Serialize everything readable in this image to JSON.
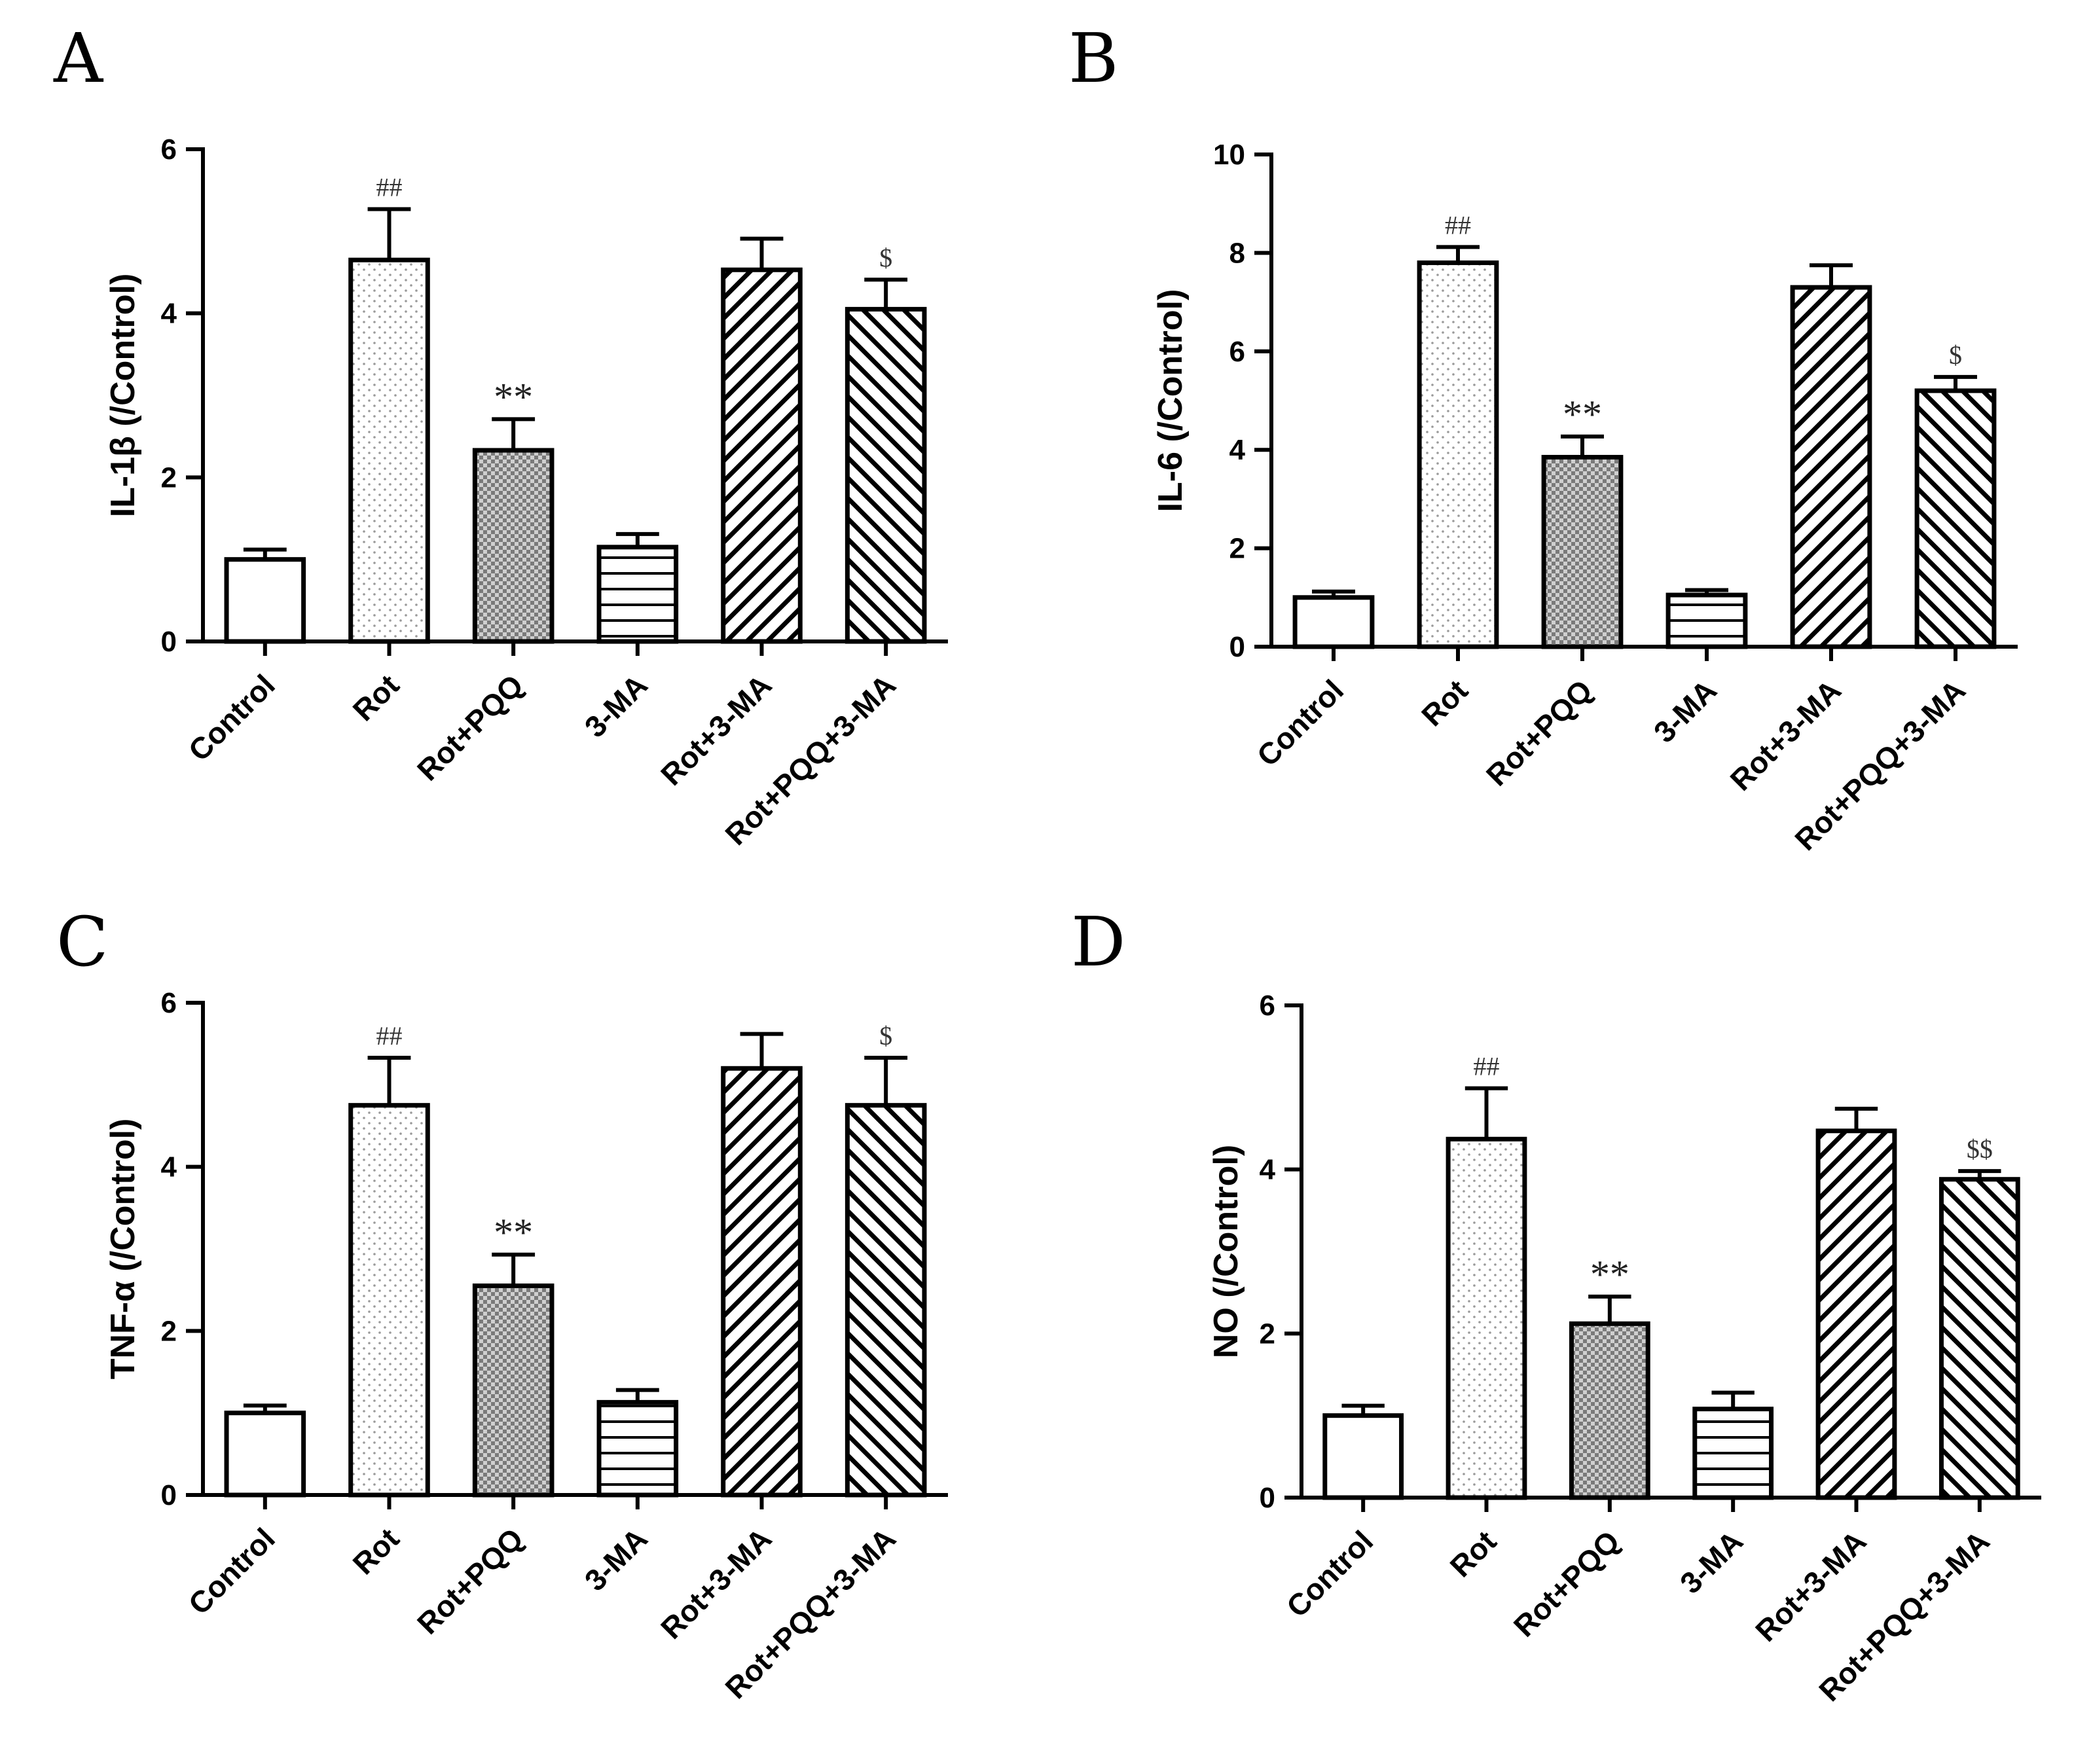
{
  "chart_data": [
    {
      "panel": "A",
      "type": "bar",
      "ylabel": "IL-1β (/Control)",
      "ylim": [
        0,
        6
      ],
      "yticks": [
        0,
        2,
        4,
        6
      ],
      "categories": [
        "Control",
        "Rot",
        "Rot+PQQ",
        "3-MA",
        "Rot+3-MA",
        "Rot+PQQ+3-MA"
      ],
      "values": [
        1.0,
        4.65,
        2.33,
        1.15,
        4.53,
        4.05
      ],
      "errors": [
        0.12,
        0.62,
        0.38,
        0.16,
        0.38,
        0.36
      ],
      "annotations": [
        "",
        "##",
        "**",
        "",
        "",
        "$"
      ]
    },
    {
      "panel": "B",
      "type": "bar",
      "ylabel": "IL-6 (/Control)",
      "ylim": [
        0,
        10
      ],
      "yticks": [
        0,
        2,
        4,
        6,
        8,
        10
      ],
      "categories": [
        "Control",
        "Rot",
        "Rot+PQQ",
        "3-MA",
        "Rot+3-MA",
        "Rot+PQQ+3-MA"
      ],
      "values": [
        1.0,
        7.8,
        3.85,
        1.05,
        7.3,
        5.2
      ],
      "errors": [
        0.12,
        0.32,
        0.42,
        0.1,
        0.45,
        0.28
      ],
      "annotations": [
        "",
        "##",
        "**",
        "",
        "",
        "$"
      ]
    },
    {
      "panel": "C",
      "type": "bar",
      "ylabel": "TNF-α (/Control)",
      "ylim": [
        0,
        6
      ],
      "yticks": [
        0,
        2,
        4,
        6
      ],
      "categories": [
        "Control",
        "Rot",
        "Rot+PQQ",
        "3-MA",
        "Rot+3-MA",
        "Rot+PQQ+3-MA"
      ],
      "values": [
        1.0,
        4.75,
        2.55,
        1.13,
        5.2,
        4.75
      ],
      "errors": [
        0.09,
        0.58,
        0.38,
        0.15,
        0.42,
        0.58
      ],
      "annotations": [
        "",
        "##",
        "**",
        "",
        "",
        "$"
      ]
    },
    {
      "panel": "D",
      "type": "bar",
      "ylabel": "NO (/Control)",
      "ylim": [
        0,
        6
      ],
      "yticks": [
        0,
        2,
        4,
        6
      ],
      "categories": [
        "Control",
        "Rot",
        "Rot+PQQ",
        "3-MA",
        "Rot+3-MA",
        "Rot+PQQ+3-MA"
      ],
      "values": [
        1.0,
        4.37,
        2.12,
        1.08,
        4.47,
        3.88
      ],
      "errors": [
        0.12,
        0.62,
        0.33,
        0.2,
        0.27,
        0.1
      ],
      "annotations": [
        "",
        "##",
        "**",
        "",
        "",
        "$$"
      ]
    }
  ],
  "colors": {
    "axis": "#000000",
    "bar_fill": "#ffffff",
    "bar_stroke": "#000000",
    "dot_pattern": "#9a9a9a",
    "checker_dark": "#7a7a7a",
    "checker_light": "#cfcfcf"
  },
  "bar_styles": [
    "plain",
    "dots",
    "checker",
    "hstripes",
    "diag-fwd",
    "diag-back"
  ]
}
